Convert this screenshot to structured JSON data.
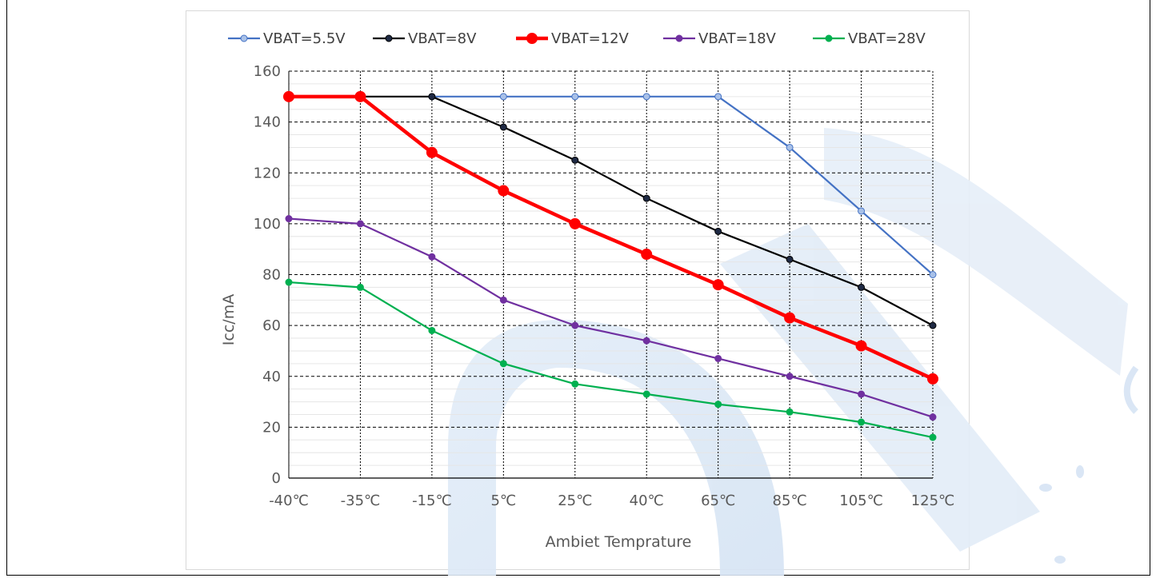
{
  "chart_data": {
    "type": "line",
    "title": "",
    "xlabel": "Ambiet Temprature",
    "ylabel": "Icc/mA",
    "categories": [
      "-40℃",
      "-35℃",
      "-15℃",
      "5℃",
      "25℃",
      "40℃",
      "65℃",
      "85℃",
      "105℃",
      "125℃"
    ],
    "ylim": [
      0,
      160
    ],
    "yticks": [
      0,
      20,
      40,
      60,
      80,
      100,
      120,
      140,
      160
    ],
    "grid": true,
    "legend_position": "top",
    "series": [
      {
        "name": "VBAT=5.5V",
        "color": "#4472c4",
        "marker_color": "#a9c1e8",
        "values": [
          null,
          null,
          150,
          150,
          150,
          150,
          150,
          130,
          105,
          80
        ]
      },
      {
        "name": "VBAT=8V",
        "color": "#000000",
        "marker_color": "#1f2a44",
        "values": [
          null,
          150,
          150,
          138,
          125,
          110,
          97,
          86,
          75,
          60
        ]
      },
      {
        "name": "VBAT=12V",
        "color": "#ff0000",
        "marker_color": "#ff0000",
        "values": [
          150,
          150,
          128,
          113,
          100,
          88,
          76,
          63,
          52,
          39
        ]
      },
      {
        "name": "VBAT=18V",
        "color": "#7030a0",
        "marker_color": "#7030a0",
        "values": [
          102,
          100,
          87,
          70,
          60,
          54,
          47,
          40,
          33,
          24
        ]
      },
      {
        "name": "VBAT=28V",
        "color": "#00b050",
        "marker_color": "#00b050",
        "values": [
          77,
          75,
          58,
          45,
          37,
          33,
          29,
          26,
          22,
          16
        ]
      }
    ]
  }
}
